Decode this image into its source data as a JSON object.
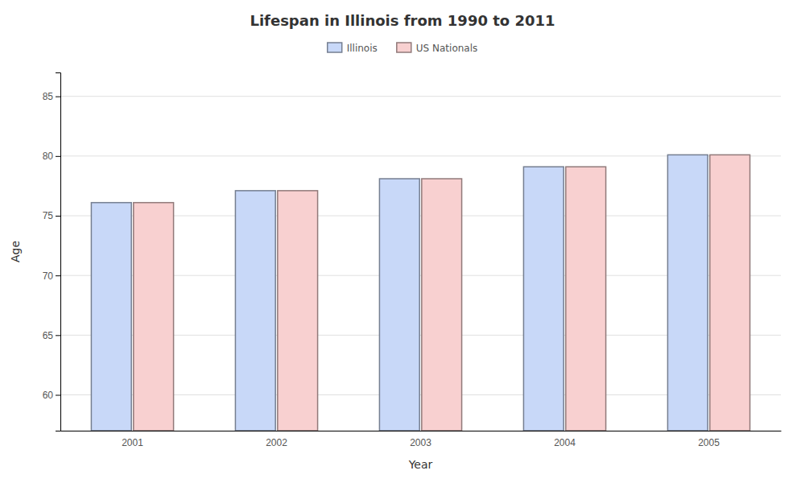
{
  "chart_data": {
    "type": "bar",
    "title": "Lifespan in Illinois from 1990 to 2011",
    "xlabel": "Year",
    "ylabel": "Age",
    "categories": [
      "2001",
      "2002",
      "2003",
      "2004",
      "2005"
    ],
    "series": [
      {
        "name": "Illinois",
        "color": "#c8d8f8",
        "values": [
          76.1,
          77.1,
          78.1,
          79.1,
          80.1
        ]
      },
      {
        "name": "US Nationals",
        "color": "#f8d0d0",
        "values": [
          76.1,
          77.1,
          78.1,
          79.1,
          80.1
        ]
      }
    ],
    "ylim": [
      57,
      87
    ],
    "yticks": [
      60,
      65,
      70,
      75,
      80,
      85
    ],
    "grid": true,
    "legend": "top"
  }
}
